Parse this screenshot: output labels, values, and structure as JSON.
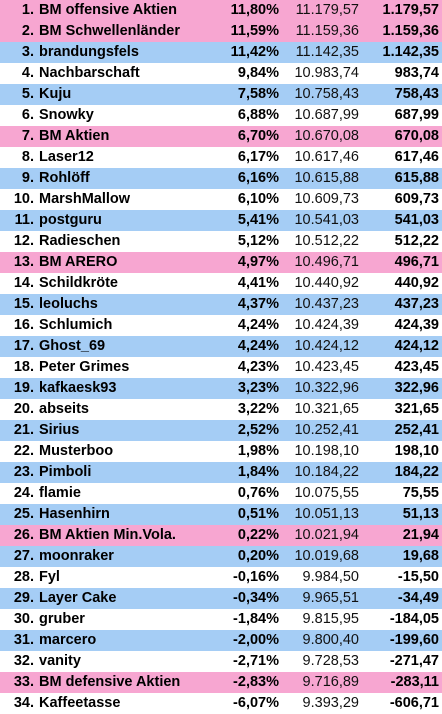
{
  "colors": {
    "white": "#ffffff",
    "pink": "#f7a6d1",
    "blue": "#a5cdf5"
  },
  "rows": [
    {
      "rank": "1.",
      "name": "BM offensive Aktien",
      "perf": "11,80%",
      "value": "11.179,57",
      "gain": "1.179,57",
      "color": "pink"
    },
    {
      "rank": "2.",
      "name": "BM Schwellenländer",
      "perf": "11,59%",
      "value": "11.159,36",
      "gain": "1.159,36",
      "color": "pink"
    },
    {
      "rank": "3.",
      "name": "brandungsfels",
      "perf": "11,42%",
      "value": "11.142,35",
      "gain": "1.142,35",
      "color": "blue"
    },
    {
      "rank": "4.",
      "name": "Nachbarschaft",
      "perf": "9,84%",
      "value": "10.983,74",
      "gain": "983,74",
      "color": "white"
    },
    {
      "rank": "5.",
      "name": "Kuju",
      "perf": "7,58%",
      "value": "10.758,43",
      "gain": "758,43",
      "color": "blue"
    },
    {
      "rank": "6.",
      "name": "Snowky",
      "perf": "6,88%",
      "value": "10.687,99",
      "gain": "687,99",
      "color": "white"
    },
    {
      "rank": "7.",
      "name": "BM Aktien",
      "perf": "6,70%",
      "value": "10.670,08",
      "gain": "670,08",
      "color": "pink"
    },
    {
      "rank": "8.",
      "name": "Laser12",
      "perf": "6,17%",
      "value": "10.617,46",
      "gain": "617,46",
      "color": "white"
    },
    {
      "rank": "9.",
      "name": "Rohlöff",
      "perf": "6,16%",
      "value": "10.615,88",
      "gain": "615,88",
      "color": "blue"
    },
    {
      "rank": "10.",
      "name": "MarshMallow",
      "perf": "6,10%",
      "value": "10.609,73",
      "gain": "609,73",
      "color": "white"
    },
    {
      "rank": "11.",
      "name": "postguru",
      "perf": "5,41%",
      "value": "10.541,03",
      "gain": "541,03",
      "color": "blue"
    },
    {
      "rank": "12.",
      "name": "Radieschen",
      "perf": "5,12%",
      "value": "10.512,22",
      "gain": "512,22",
      "color": "white"
    },
    {
      "rank": "13.",
      "name": "BM ARERO",
      "perf": "4,97%",
      "value": "10.496,71",
      "gain": "496,71",
      "color": "pink"
    },
    {
      "rank": "14.",
      "name": "Schildkröte",
      "perf": "4,41%",
      "value": "10.440,92",
      "gain": "440,92",
      "color": "white"
    },
    {
      "rank": "15.",
      "name": "leoluchs",
      "perf": "4,37%",
      "value": "10.437,23",
      "gain": "437,23",
      "color": "blue"
    },
    {
      "rank": "16.",
      "name": "Schlumich",
      "perf": "4,24%",
      "value": "10.424,39",
      "gain": "424,39",
      "color": "white"
    },
    {
      "rank": "17.",
      "name": "Ghost_69",
      "perf": "4,24%",
      "value": "10.424,12",
      "gain": "424,12",
      "color": "blue"
    },
    {
      "rank": "18.",
      "name": "Peter Grimes",
      "perf": "4,23%",
      "value": "10.423,45",
      "gain": "423,45",
      "color": "white"
    },
    {
      "rank": "19.",
      "name": "kafkaesk93",
      "perf": "3,23%",
      "value": "10.322,96",
      "gain": "322,96",
      "color": "blue"
    },
    {
      "rank": "20.",
      "name": "abseits",
      "perf": "3,22%",
      "value": "10.321,65",
      "gain": "321,65",
      "color": "white"
    },
    {
      "rank": "21.",
      "name": "Sirius",
      "perf": "2,52%",
      "value": "10.252,41",
      "gain": "252,41",
      "color": "blue"
    },
    {
      "rank": "22.",
      "name": "Musterboo",
      "perf": "1,98%",
      "value": "10.198,10",
      "gain": "198,10",
      "color": "white"
    },
    {
      "rank": "23.",
      "name": "Pimboli",
      "perf": "1,84%",
      "value": "10.184,22",
      "gain": "184,22",
      "color": "blue"
    },
    {
      "rank": "24.",
      "name": "flamie",
      "perf": "0,76%",
      "value": "10.075,55",
      "gain": "75,55",
      "color": "white"
    },
    {
      "rank": "25.",
      "name": "Hasenhirn",
      "perf": "0,51%",
      "value": "10.051,13",
      "gain": "51,13",
      "color": "blue"
    },
    {
      "rank": "26.",
      "name": "BM Aktien Min.Vola.",
      "perf": "0,22%",
      "value": "10.021,94",
      "gain": "21,94",
      "color": "pink"
    },
    {
      "rank": "27.",
      "name": "moonraker",
      "perf": "0,20%",
      "value": "10.019,68",
      "gain": "19,68",
      "color": "blue"
    },
    {
      "rank": "28.",
      "name": "Fyl",
      "perf": "-0,16%",
      "value": "9.984,50",
      "gain": "-15,50",
      "color": "white"
    },
    {
      "rank": "29.",
      "name": "Layer Cake",
      "perf": "-0,34%",
      "value": "9.965,51",
      "gain": "-34,49",
      "color": "blue"
    },
    {
      "rank": "30.",
      "name": "gruber",
      "perf": "-1,84%",
      "value": "9.815,95",
      "gain": "-184,05",
      "color": "white"
    },
    {
      "rank": "31.",
      "name": "marcero",
      "perf": "-2,00%",
      "value": "9.800,40",
      "gain": "-199,60",
      "color": "blue"
    },
    {
      "rank": "32.",
      "name": "vanity",
      "perf": "-2,71%",
      "value": "9.728,53",
      "gain": "-271,47",
      "color": "white"
    },
    {
      "rank": "33.",
      "name": "BM defensive Aktien",
      "perf": "-2,83%",
      "value": "9.716,89",
      "gain": "-283,11",
      "color": "pink"
    },
    {
      "rank": "34.",
      "name": "Kaffeetasse",
      "perf": "-6,07%",
      "value": "9.393,29",
      "gain": "-606,71",
      "color": "white"
    }
  ]
}
